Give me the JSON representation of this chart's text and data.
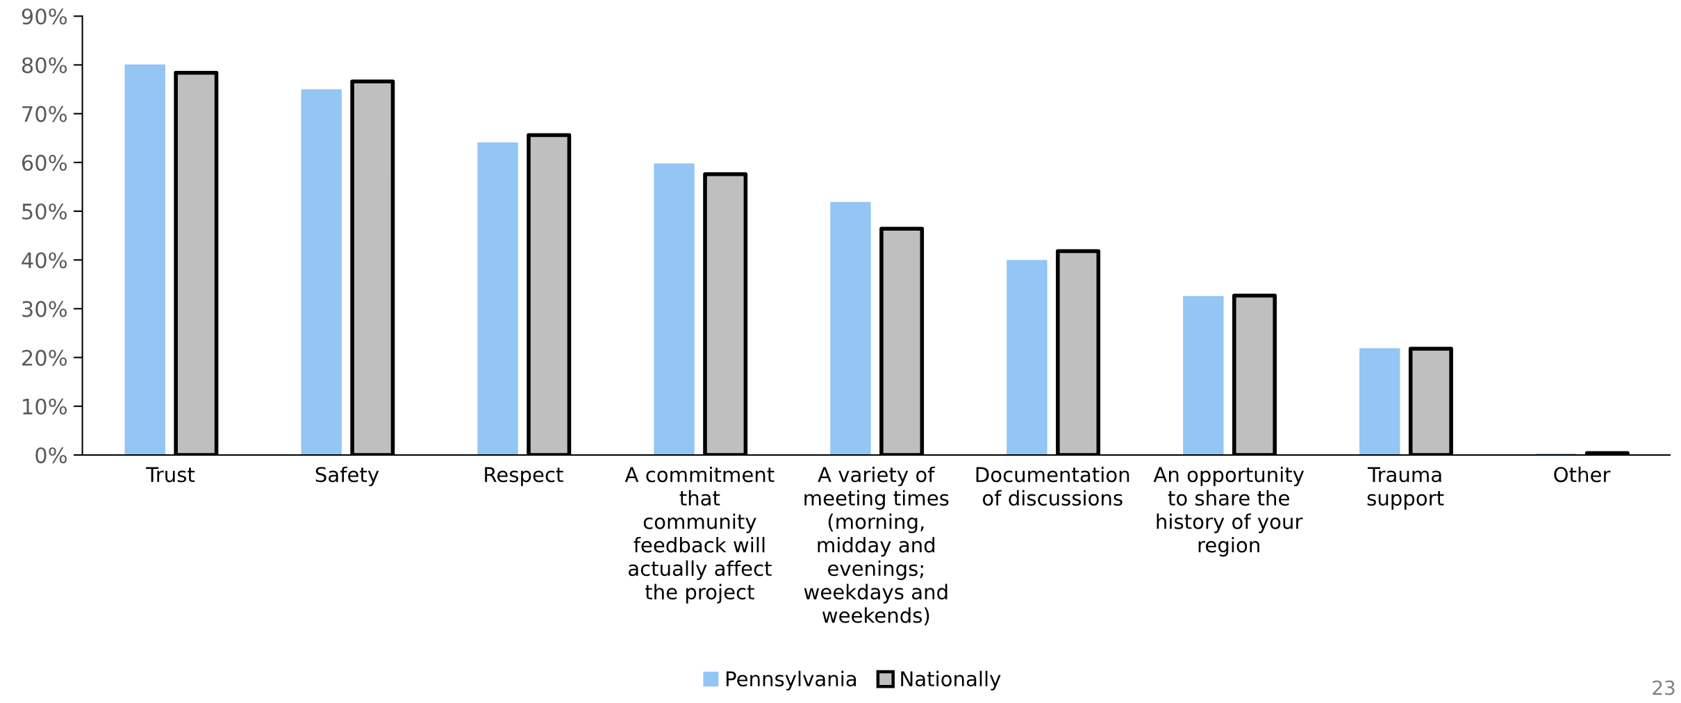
{
  "chart_data": {
    "type": "bar",
    "categories": [
      "Trust",
      "Safety",
      "Respect",
      "A commitment\nthat\ncommunity\nfeedback will\nactually affect\nthe project",
      "A variety of\nmeeting times\n(morning,\nmidday and\nevenings;\nweekdays and\nweekends)",
      "Documentation\nof discussions",
      "An opportunity\nto share the\nhistory of your\nregion",
      "Trauma\nsupport",
      "Other"
    ],
    "series": [
      {
        "name": "Pennsylvania",
        "color": "#93c5f5",
        "values": [
          80.1,
          75.0,
          64.1,
          59.8,
          51.9,
          40.0,
          32.6,
          21.9,
          0.3
        ]
      },
      {
        "name": "Nationally",
        "color": "#bfbfbf",
        "values": [
          78.4,
          76.6,
          65.6,
          57.6,
          46.4,
          41.8,
          32.7,
          21.8,
          0.4
        ]
      }
    ],
    "ylim": [
      0,
      90
    ],
    "yticks": [
      {
        "value": 0,
        "label": "0%"
      },
      {
        "value": 10,
        "label": "10%"
      },
      {
        "value": 20,
        "label": "20%"
      },
      {
        "value": 30,
        "label": "30%"
      },
      {
        "value": 40,
        "label": "40%"
      },
      {
        "value": 50,
        "label": "50%"
      },
      {
        "value": 60,
        "label": "60%"
      },
      {
        "value": 70,
        "label": "70%"
      },
      {
        "value": 80,
        "label": "80%"
      },
      {
        "value": 90,
        "label": "90%"
      }
    ],
    "legend": "bottom",
    "annotations": [
      "23"
    ]
  }
}
